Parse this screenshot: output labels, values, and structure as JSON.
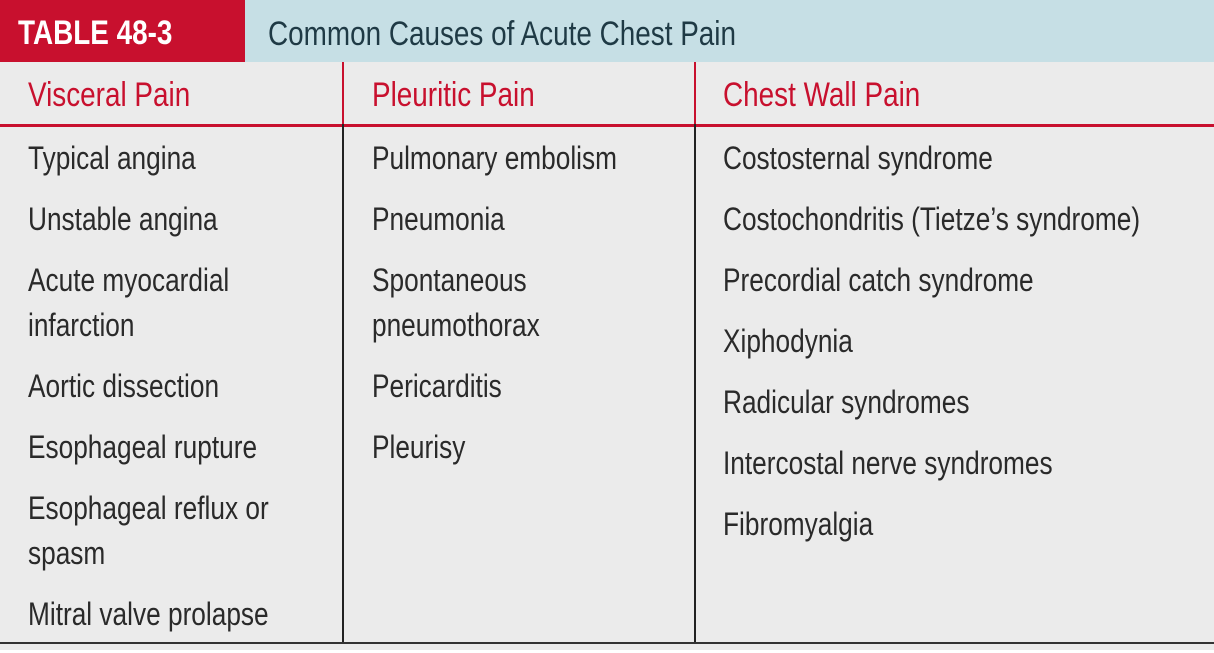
{
  "table": {
    "label": "TABLE 48-3",
    "title": "Common Causes of Acute Chest Pain",
    "colors": {
      "accent_red": "#c8102e",
      "title_bar": "#c6dfe5",
      "body_bg": "#ebebeb"
    },
    "columns": [
      {
        "header": "Visceral Pain",
        "items": [
          [
            "Typical angina"
          ],
          [
            "Unstable angina"
          ],
          [
            "Acute myocardial",
            "infarction"
          ],
          [
            "Aortic dissection"
          ],
          [
            "Esophageal rupture"
          ],
          [
            "Esophageal reflux or",
            "spasm"
          ],
          [
            "Mitral valve prolapse"
          ]
        ]
      },
      {
        "header": "Pleuritic Pain",
        "items": [
          [
            "Pulmonary embolism"
          ],
          [
            "Pneumonia"
          ],
          [
            "Spontaneous",
            "pneumothorax"
          ],
          [
            "Pericarditis"
          ],
          [
            "Pleurisy"
          ]
        ]
      },
      {
        "header": "Chest Wall Pain",
        "items": [
          [
            "Costosternal syndrome"
          ],
          [
            "Costochondritis (Tietze’s syndrome)"
          ],
          [
            "Precordial catch syndrome"
          ],
          [
            "Xiphodynia"
          ],
          [
            "Radicular syndromes"
          ],
          [
            "Intercostal nerve syndromes"
          ],
          [
            "Fibromyalgia"
          ]
        ]
      }
    ]
  }
}
